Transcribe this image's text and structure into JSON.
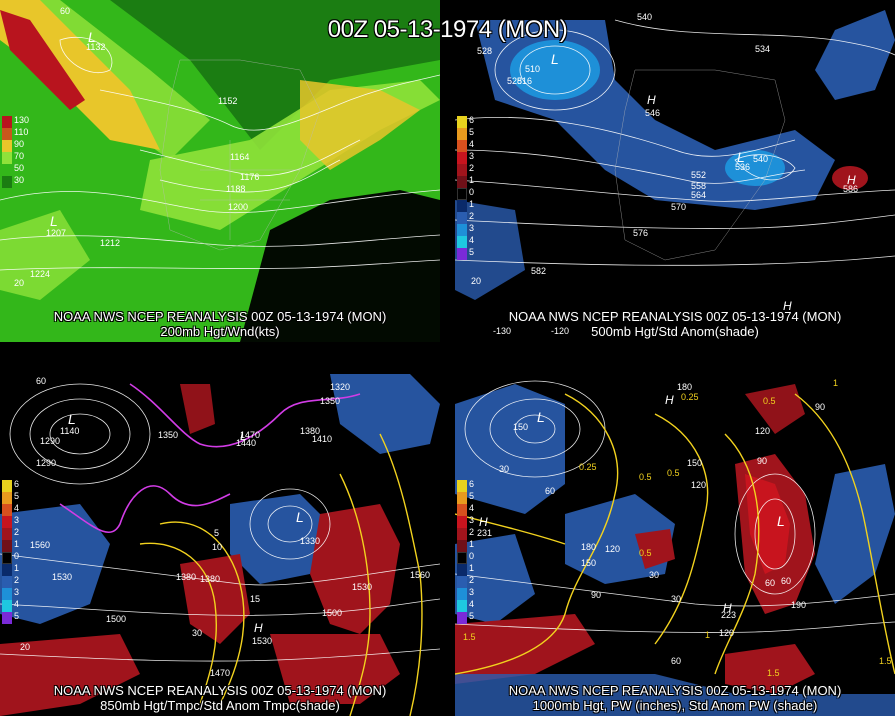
{
  "title": "00Z 05-13-1974 (MON)",
  "colors": {
    "background": "#000000",
    "wind_green": "#33b71a",
    "wind_lightgreen": "#8fe23a",
    "wind_yellow": "#e8c62a",
    "wind_red": "#b8141e",
    "anom_blue": "#2a5db0",
    "anom_red": "#a0141c",
    "contour_white": "#ffffff",
    "contour_yellow": "#f2d21e",
    "contour_magenta": "#d23ce6"
  },
  "panels": [
    {
      "id": "200mb",
      "caption_source": "NOAA NWS NCEP REANALYSIS 00Z 05-13-1974 (MON)",
      "caption_field": "200mb Hgt/Wnd(kts)",
      "legend": [
        "130",
        "110",
        "90",
        "70",
        "50",
        "30"
      ],
      "legend_colors": [
        "#b8141e",
        "#c8561c",
        "#e8c62a",
        "#8fe23a",
        "#33b71a",
        "#1b7d12"
      ],
      "labels": [
        "1132",
        "1152",
        "1164",
        "1176",
        "1188",
        "1200",
        "1207",
        "1212",
        "1224",
        "60",
        "20",
        "L",
        "L"
      ]
    },
    {
      "id": "500mb",
      "caption_source": "NOAA NWS NCEP REANALYSIS 00Z 05-13-1974 (MON)",
      "caption_field": "500mb Hgt/Std Anom(shade)",
      "legend": [
        "6",
        "5",
        "4",
        "3",
        "2",
        "1",
        "0",
        "1",
        "2",
        "3",
        "4",
        "5"
      ],
      "legend_colors": [
        "#e8d21e",
        "#e89a1e",
        "#d8501e",
        "#c8141e",
        "#a0141c",
        "#701018",
        "#000000",
        "#0a2a6a",
        "#2a5db0",
        "#1e90d8",
        "#1ec8e0",
        "#7a2ad8"
      ],
      "labels": [
        "540",
        "528",
        "510",
        "528",
        "516",
        "534",
        "546",
        "552",
        "558",
        "564",
        "570",
        "576",
        "582",
        "536",
        "540",
        "586",
        "-130",
        "-120",
        "20",
        "H",
        "H",
        "H",
        "L",
        "L"
      ]
    },
    {
      "id": "850mb",
      "caption_source": "NOAA NWS NCEP REANALYSIS 00Z 05-13-1974 (MON)",
      "caption_field": "850mb Hgt/Tmpc/Std Anom Tmpc(shade)",
      "legend": [
        "6",
        "5",
        "4",
        "3",
        "2",
        "1",
        "0",
        "1",
        "2",
        "3",
        "4",
        "5"
      ],
      "legend_colors": [
        "#e8d21e",
        "#e89a1e",
        "#d8501e",
        "#c8141e",
        "#a0141c",
        "#701018",
        "#000000",
        "#0a2a6a",
        "#2a5db0",
        "#1e90d8",
        "#1ec8e0",
        "#7a2ad8"
      ],
      "labels": [
        "1320",
        "1350",
        "1380",
        "1410",
        "1290",
        "1140",
        "1440",
        "1470",
        "1560",
        "1530",
        "1500",
        "1470",
        "1350",
        "1380",
        "1380",
        "1530",
        "1530",
        "1500",
        "1560",
        "1290",
        "1330",
        "15",
        "10",
        "5",
        "30",
        "20",
        "L",
        "L",
        "L",
        "H",
        "60"
      ]
    },
    {
      "id": "1000mb",
      "caption_source": "NOAA NWS NCEP REANALYSIS 00Z 05-13-1974 (MON)",
      "caption_field": "1000mb Hgt, PW (inches), Std Anom PW (shade)",
      "legend": [
        "6",
        "5",
        "4",
        "3",
        "2",
        "1",
        "0",
        "1",
        "2",
        "3",
        "4",
        "5"
      ],
      "legend_colors": [
        "#e8d21e",
        "#e89a1e",
        "#d8501e",
        "#c8141e",
        "#a0141c",
        "#701018",
        "#000000",
        "#0a2a6a",
        "#2a5db0",
        "#1e90d8",
        "#1ec8e0",
        "#7a2ad8"
      ],
      "labels": [
        "180",
        "0.25",
        "0.5",
        "90",
        "120",
        "150",
        "30",
        "60",
        "0.25",
        "0.5",
        "0.5",
        "1",
        "1.5",
        "1.5",
        "1",
        "150",
        "120",
        "90",
        "60",
        "30",
        "180",
        "150",
        "120",
        "90",
        "30",
        "60",
        "190",
        "120",
        "60",
        "1.5",
        "0.5",
        "231",
        "223",
        "H",
        "H",
        "H",
        "L",
        "L"
      ]
    }
  ]
}
